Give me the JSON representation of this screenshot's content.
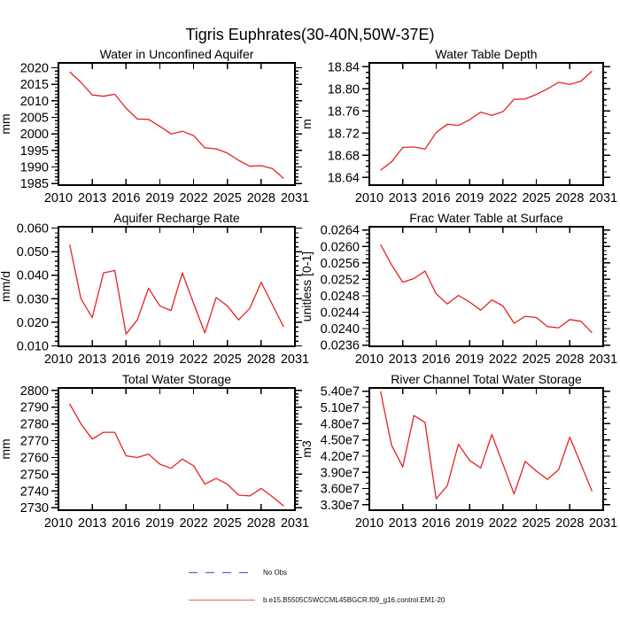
{
  "title": "Tigris Euphrates(30-40N,50W-37E)",
  "colors": {
    "line": "#e62222",
    "axis": "#000000"
  },
  "legend": {
    "items": [
      {
        "label": "No Obs",
        "style": "dashed",
        "color": "#6666cc"
      },
      {
        "label": "b.e15.B5505C5WCCML45BGCR.f09_g16.control.EM1-20",
        "style": "solid",
        "color": "#e06666"
      }
    ]
  },
  "chart_data": [
    {
      "type": "line",
      "title": "Water in Unconfined Aquifer",
      "ylabel": "mm",
      "xlim": [
        2010,
        2031
      ],
      "xticks": [
        2010,
        2013,
        2016,
        2019,
        2022,
        2025,
        2028,
        2031
      ],
      "ylim": [
        1984.5,
        2021.5
      ],
      "yticks": [
        1985,
        1990,
        1995,
        2000,
        2005,
        2010,
        2015,
        2020
      ],
      "ytick_labels": [
        "1985",
        "1990",
        "1995",
        "2000",
        "2005",
        "2010",
        "2015",
        "2020"
      ],
      "yminor_per_major": 4,
      "x": [
        2011,
        2012,
        2013,
        2014,
        2015,
        2016,
        2017,
        2018,
        2019,
        2020,
        2021,
        2022,
        2023,
        2024,
        2025,
        2026,
        2027,
        2028,
        2029,
        2030
      ],
      "values": [
        2018.8,
        2015.6,
        2011.8,
        2011.4,
        2012.0,
        2007.8,
        2004.5,
        2004.4,
        2002.3,
        2000.0,
        2000.8,
        1999.5,
        1995.8,
        1995.5,
        1994.2,
        1992.0,
        1990.2,
        1990.4,
        1989.5,
        1986.5
      ]
    },
    {
      "type": "line",
      "title": "Water Table Depth",
      "ylabel": "m",
      "xlim": [
        2010,
        2031
      ],
      "xticks": [
        2010,
        2013,
        2016,
        2019,
        2022,
        2025,
        2028,
        2031
      ],
      "ylim": [
        18.626,
        18.847
      ],
      "yticks": [
        18.64,
        18.68,
        18.72,
        18.76,
        18.8,
        18.84
      ],
      "ytick_labels": [
        "18.64",
        "18.68",
        "18.72",
        "18.76",
        "18.80",
        "18.84"
      ],
      "yminor_per_major": 3,
      "x": [
        2011,
        2012,
        2013,
        2014,
        2015,
        2016,
        2017,
        2018,
        2019,
        2020,
        2021,
        2022,
        2023,
        2024,
        2025,
        2026,
        2027,
        2028,
        2029,
        2030
      ],
      "values": [
        18.653,
        18.668,
        18.694,
        18.695,
        18.691,
        18.721,
        18.736,
        18.734,
        18.744,
        18.758,
        18.752,
        18.759,
        18.781,
        18.782,
        18.79,
        18.8,
        18.812,
        18.808,
        18.814,
        18.832
      ]
    },
    {
      "type": "line",
      "title": "Aquifer Recharge Rate",
      "ylabel": "mm/d",
      "xlim": [
        2010,
        2031
      ],
      "xticks": [
        2010,
        2013,
        2016,
        2019,
        2022,
        2025,
        2028,
        2031
      ],
      "ylim": [
        0.0098,
        0.0606
      ],
      "yticks": [
        0.01,
        0.02,
        0.03,
        0.04,
        0.05,
        0.06
      ],
      "ytick_labels": [
        "0.010",
        "0.020",
        "0.030",
        "0.040",
        "0.050",
        "0.060"
      ],
      "yminor_per_major": 4,
      "x": [
        2011,
        2012,
        2013,
        2014,
        2015,
        2016,
        2017,
        2018,
        2019,
        2020,
        2021,
        2022,
        2023,
        2024,
        2025,
        2026,
        2027,
        2028,
        2029,
        2030
      ],
      "values": [
        0.053,
        0.03,
        0.022,
        0.041,
        0.042,
        0.015,
        0.021,
        0.0345,
        0.027,
        0.025,
        0.041,
        0.028,
        0.0155,
        0.0305,
        0.027,
        0.021,
        0.026,
        0.037,
        0.0275,
        0.018
      ]
    },
    {
      "type": "line",
      "title": "Frac Water Table at Surface",
      "ylabel": "unitless [0-1]",
      "xlim": [
        2010,
        2031
      ],
      "xticks": [
        2010,
        2013,
        2016,
        2019,
        2022,
        2025,
        2028,
        2031
      ],
      "ylim": [
        0.02357,
        0.02648
      ],
      "yticks": [
        0.0236,
        0.024,
        0.0244,
        0.0248,
        0.0252,
        0.0256,
        0.026,
        0.0264
      ],
      "ytick_labels": [
        "0.0236",
        "0.0240",
        "0.0244",
        "0.0248",
        "0.0252",
        "0.0256",
        "0.0260",
        "0.0264"
      ],
      "yminor_per_major": 3,
      "x": [
        2011,
        2012,
        2013,
        2014,
        2015,
        2016,
        2017,
        2018,
        2019,
        2020,
        2021,
        2022,
        2023,
        2024,
        2025,
        2026,
        2027,
        2028,
        2029,
        2030
      ],
      "values": [
        0.02605,
        0.02555,
        0.02513,
        0.02522,
        0.0254,
        0.02485,
        0.0246,
        0.02481,
        0.02465,
        0.02445,
        0.0247,
        0.02455,
        0.02413,
        0.0243,
        0.02427,
        0.02405,
        0.02402,
        0.02422,
        0.02418,
        0.0239
      ]
    },
    {
      "type": "line",
      "title": "Total Water Storage",
      "ylabel": "mm",
      "xlim": [
        2010,
        2031
      ],
      "xticks": [
        2010,
        2013,
        2016,
        2019,
        2022,
        2025,
        2028,
        2031
      ],
      "ylim": [
        2728.5,
        2801.5
      ],
      "yticks": [
        2730,
        2740,
        2750,
        2760,
        2770,
        2780,
        2790,
        2800
      ],
      "ytick_labels": [
        "2730",
        "2740",
        "2750",
        "2760",
        "2770",
        "2780",
        "2790",
        "2800"
      ],
      "yminor_per_major": 4,
      "x": [
        2011,
        2012,
        2013,
        2014,
        2015,
        2016,
        2017,
        2018,
        2019,
        2020,
        2021,
        2022,
        2023,
        2024,
        2025,
        2026,
        2027,
        2028,
        2029,
        2030
      ],
      "values": [
        2792,
        2780,
        2771,
        2775,
        2775,
        2761,
        2760,
        2762,
        2756,
        2753.5,
        2759,
        2755,
        2744,
        2747.5,
        2744,
        2737.5,
        2737,
        2741.5,
        2736.5,
        2731
      ]
    },
    {
      "type": "line",
      "title": "River Channel Total Water Storage",
      "ylabel": "m3",
      "xlim": [
        2010,
        2031
      ],
      "xticks": [
        2010,
        2013,
        2016,
        2019,
        2022,
        2025,
        2028,
        2031
      ],
      "ylim": [
        32000000,
        54600000
      ],
      "yticks": [
        33000000,
        36000000,
        39000000,
        42000000,
        45000000,
        48000000,
        51000000,
        54000000
      ],
      "ytick_labels": [
        "3.30e7",
        "3.60e7",
        "3.90e7",
        "4.20e7",
        "4.50e7",
        "4.80e7",
        "5.10e7",
        "5.40e7"
      ],
      "yminor_per_major": 2,
      "x": [
        2011,
        2012,
        2013,
        2014,
        2015,
        2016,
        2017,
        2018,
        2019,
        2020,
        2021,
        2022,
        2023,
        2024,
        2025,
        2026,
        2027,
        2028,
        2029,
        2030
      ],
      "values": [
        54000000,
        44000000,
        40000000,
        49500000,
        48200000,
        34100000,
        36500000,
        44200000,
        41200000,
        39800000,
        46000000,
        40500000,
        35000000,
        41000000,
        39200000,
        37700000,
        39500000,
        45500000,
        40500000,
        35500000
      ]
    }
  ]
}
